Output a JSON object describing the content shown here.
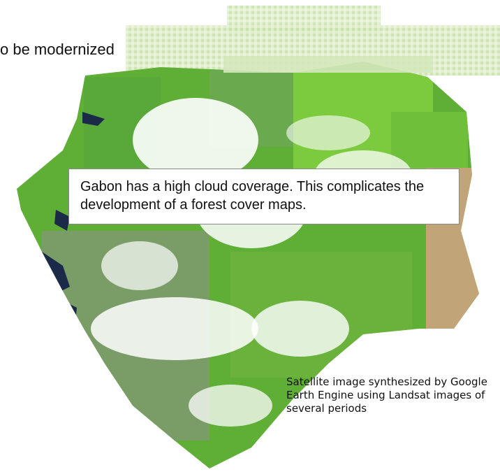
{
  "heading_fragment": "o be modernized",
  "callout_text": "Gabon has a high cloud coverage. This complicates the development of a forest cover maps.",
  "caption_text": "Satellite image synthesized by Google Earth Engine using Landsat images of several periods",
  "colors": {
    "forest_bright": "#6fc23a",
    "forest_dark": "#3f8f2e",
    "forest_muted": "#8aa872",
    "bare_pink": "#e39a8a",
    "water": "#1c2a4a",
    "cloud": "#ffffff",
    "band_pale": "#cfe7b2"
  }
}
